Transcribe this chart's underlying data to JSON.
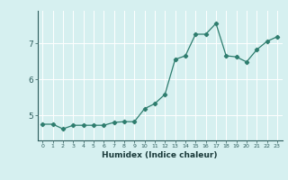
{
  "x": [
    0,
    1,
    2,
    3,
    4,
    5,
    6,
    7,
    8,
    9,
    10,
    11,
    12,
    13,
    14,
    15,
    16,
    17,
    18,
    19,
    20,
    21,
    22,
    23
  ],
  "y": [
    4.75,
    4.75,
    4.62,
    4.72,
    4.72,
    4.72,
    4.72,
    4.8,
    4.82,
    4.82,
    5.18,
    5.32,
    5.58,
    6.55,
    6.65,
    7.25,
    7.25,
    7.55,
    6.65,
    6.62,
    6.48,
    6.82,
    7.05,
    7.18
  ],
  "xlim": [
    -0.5,
    23.5
  ],
  "ylim": [
    4.3,
    7.9
  ],
  "yticks": [
    5,
    6,
    7
  ],
  "xticks": [
    0,
    1,
    2,
    3,
    4,
    5,
    6,
    7,
    8,
    9,
    10,
    11,
    12,
    13,
    14,
    15,
    16,
    17,
    18,
    19,
    20,
    21,
    22,
    23
  ],
  "xlabel": "Humidex (Indice chaleur)",
  "line_color": "#2e7d6e",
  "bg_color": "#d6f0f0",
  "grid_color": "#ffffff"
}
